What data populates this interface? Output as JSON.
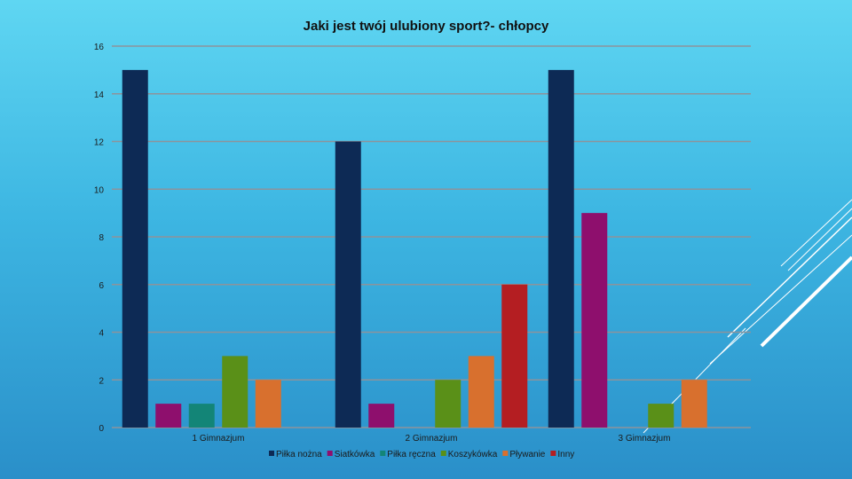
{
  "chart_data": {
    "type": "bar",
    "title": "Jaki jest twój ulubiony sport?- chłopcy",
    "categories": [
      "1 Gimnazjum",
      "2 Gimnazjum",
      "3 Gimnazjum"
    ],
    "series": [
      {
        "name": "Piłka nożna",
        "color": "#0d2a55",
        "values": [
          15,
          12,
          15
        ]
      },
      {
        "name": "Siatkówka",
        "color": "#8e0f6d",
        "values": [
          1,
          1,
          9
        ]
      },
      {
        "name": "Piłka ręczna",
        "color": "#138577",
        "values": [
          1,
          0,
          0
        ]
      },
      {
        "name": "Koszykówka",
        "color": "#5a9018",
        "values": [
          3,
          2,
          1
        ]
      },
      {
        "name": "Pływanie",
        "color": "#d8702e",
        "values": [
          2,
          3,
          2
        ]
      },
      {
        "name": "Inny",
        "color": "#b41e22",
        "values": [
          0,
          6,
          0
        ]
      }
    ],
    "ylim": [
      0,
      16
    ],
    "yticks": [
      "0",
      "2",
      "4",
      "6",
      "8",
      "10",
      "12",
      "14",
      "16"
    ],
    "grid": true,
    "legend_position": "bottom"
  }
}
